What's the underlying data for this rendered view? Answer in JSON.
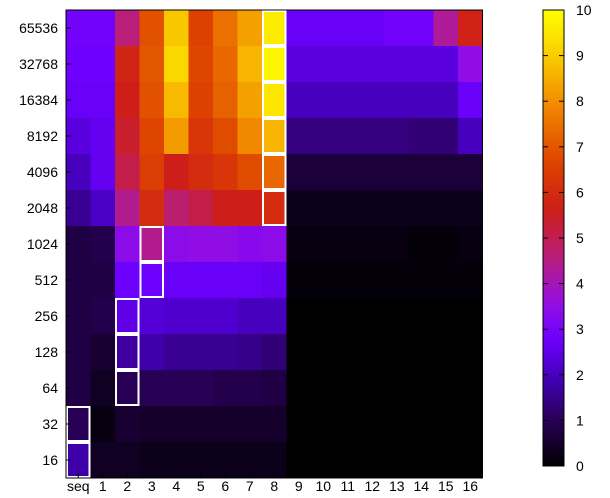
{
  "chart_data": {
    "type": "heatmap",
    "title": "",
    "xlabel": "",
    "ylabel": "",
    "x_categories": [
      "seq",
      "1",
      "2",
      "3",
      "4",
      "5",
      "6",
      "7",
      "8",
      "9",
      "10",
      "11",
      "12",
      "13",
      "14",
      "15",
      "16"
    ],
    "y_categories": [
      "65536",
      "32768",
      "16384",
      "8192",
      "4096",
      "2048",
      "1024",
      "512",
      "256",
      "128",
      "64",
      "32",
      "16"
    ],
    "values": [
      [
        2.9,
        2.9,
        4.6,
        6.9,
        8.9,
        6.6,
        7.5,
        8.3,
        9.6,
        2.7,
        2.7,
        2.7,
        2.7,
        2.9,
        2.9,
        4.3,
        5.7
      ],
      [
        2.8,
        2.8,
        5.8,
        7.0,
        9.2,
        6.7,
        7.3,
        8.6,
        9.8,
        2.4,
        2.4,
        2.4,
        2.4,
        2.4,
        2.4,
        2.4,
        3.5
      ],
      [
        2.7,
        2.7,
        5.6,
        6.9,
        8.7,
        6.6,
        7.2,
        8.3,
        9.5,
        2.0,
        2.0,
        2.0,
        2.0,
        2.0,
        2.0,
        2.0,
        2.7
      ],
      [
        2.4,
        2.6,
        5.4,
        6.7,
        8.2,
        6.3,
        6.8,
        7.9,
        8.6,
        1.4,
        1.4,
        1.4,
        1.4,
        1.4,
        1.3,
        1.3,
        2.0
      ],
      [
        2.0,
        2.6,
        5.1,
        6.5,
        5.6,
        6.0,
        6.3,
        6.8,
        7.3,
        0.7,
        0.7,
        0.7,
        0.7,
        0.7,
        0.7,
        0.7,
        0.7
      ],
      [
        1.6,
        2.1,
        4.4,
        6.0,
        4.7,
        5.1,
        5.6,
        5.6,
        6.0,
        0.3,
        0.3,
        0.3,
        0.3,
        0.3,
        0.3,
        0.3,
        0.3
      ],
      [
        0.8,
        0.9,
        3.4,
        4.4,
        3.4,
        3.5,
        3.5,
        3.3,
        3.4,
        0.2,
        0.2,
        0.2,
        0.2,
        0.2,
        0.1,
        0.1,
        0.2
      ],
      [
        0.8,
        0.8,
        2.8,
        2.8,
        2.7,
        2.7,
        2.7,
        2.7,
        2.6,
        0.1,
        0.1,
        0.1,
        0.1,
        0.1,
        0.1,
        0.1,
        0.1
      ],
      [
        0.8,
        0.9,
        2.5,
        2.3,
        2.2,
        2.2,
        2.2,
        2.0,
        2.0,
        0.0,
        0.0,
        0.0,
        0.0,
        0.0,
        0.0,
        0.0,
        0.0
      ],
      [
        0.8,
        0.6,
        1.7,
        1.8,
        1.6,
        1.6,
        1.6,
        1.5,
        1.3,
        0.0,
        0.0,
        0.0,
        0.0,
        0.0,
        0.0,
        0.0,
        0.0
      ],
      [
        0.8,
        0.4,
        1.0,
        1.0,
        1.0,
        1.0,
        0.9,
        0.9,
        0.8,
        0.0,
        0.0,
        0.0,
        0.0,
        0.0,
        0.0,
        0.0,
        0.0
      ],
      [
        1.0,
        0.2,
        0.6,
        0.5,
        0.5,
        0.5,
        0.5,
        0.5,
        0.5,
        0.0,
        0.0,
        0.0,
        0.0,
        0.0,
        0.0,
        0.0,
        0.0
      ],
      [
        1.8,
        0.4,
        0.4,
        0.3,
        0.3,
        0.3,
        0.3,
        0.3,
        0.3,
        0.0,
        0.0,
        0.0,
        0.0,
        0.0,
        0.0,
        0.0,
        0.0
      ]
    ],
    "highlighted_cells": [
      {
        "x": "seq",
        "y": "16"
      },
      {
        "x": "seq",
        "y": "32"
      },
      {
        "x": "2",
        "y": "64"
      },
      {
        "x": "2",
        "y": "128"
      },
      {
        "x": "2",
        "y": "256"
      },
      {
        "x": "3",
        "y": "512"
      },
      {
        "x": "3",
        "y": "1024"
      },
      {
        "x": "8",
        "y": "2048"
      },
      {
        "x": "8",
        "y": "4096"
      },
      {
        "x": "8",
        "y": "8192"
      },
      {
        "x": "8",
        "y": "16384"
      },
      {
        "x": "8",
        "y": "32768"
      },
      {
        "x": "8",
        "y": "65536"
      }
    ],
    "highlight_color": "#ffffff",
    "colorbar": {
      "min": 0,
      "max": 10,
      "ticks": [
        "0",
        "1",
        "2",
        "3",
        "4",
        "5",
        "6",
        "7",
        "8",
        "9",
        "10"
      ],
      "placement": "right",
      "palette": "black-blue-purple-red-orange-yellow"
    }
  }
}
